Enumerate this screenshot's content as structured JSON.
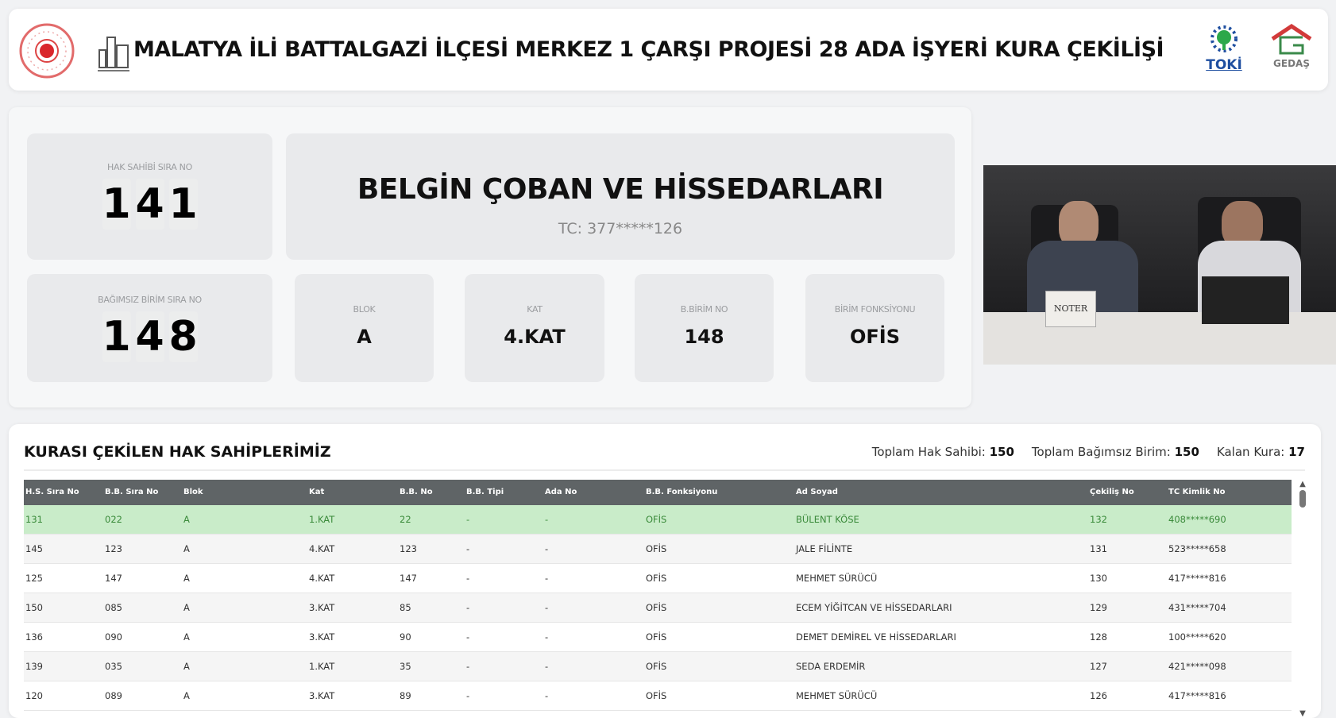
{
  "header": {
    "title": "MALATYA İLİ BATTALGAZİ İLÇESİ MERKEZ 1 ÇARŞI PROJESİ 28 ADA İŞYERİ KURA ÇEKİLİŞİ",
    "logos": [
      "toki",
      "gedas"
    ],
    "logo_text": {
      "toki": "TOKİ",
      "gedas": "GEDAŞ"
    }
  },
  "current": {
    "hak_sahibi_label": "HAK SAHİBİ SIRA NO",
    "hak_sahibi_digits": [
      "1",
      "4",
      "1"
    ],
    "name": "BELGİN ÇOBAN VE HİSSEDARLARI",
    "tc": "TC: 377*****126",
    "bb_label": "BAĞIMSIZ BİRİM SIRA NO",
    "bb_digits": [
      "1",
      "4",
      "8"
    ],
    "details": [
      {
        "label": "BLOK",
        "value": "A"
      },
      {
        "label": "KAT",
        "value": "4.KAT"
      },
      {
        "label": "B.BİRİM NO",
        "value": "148"
      },
      {
        "label": "BİRİM FONKSİYONU",
        "value": "OFİS"
      }
    ]
  },
  "video": {
    "sign": "NOTER"
  },
  "list": {
    "title": "KURASI ÇEKİLEN HAK SAHİPLERİMİZ",
    "totals": [
      {
        "label": "Toplam Hak Sahibi:",
        "value": "150"
      },
      {
        "label": "Toplam Bağımsız Birim:",
        "value": "150"
      },
      {
        "label": "Kalan Kura:",
        "value": "17"
      }
    ],
    "columns": [
      "H.S. Sıra No",
      "B.B. Sıra No",
      "Blok",
      "Kat",
      "B.B. No",
      "B.B. Tipi",
      "Ada No",
      "B.B. Fonksiyonu",
      "Ad Soyad",
      "Çekiliş No",
      "TC Kimlik No"
    ],
    "rows": [
      [
        "131",
        "022",
        "A",
        "1.KAT",
        "22",
        "-",
        "-",
        "OFİS",
        "BÜLENT KÖSE",
        "132",
        "408*****690"
      ],
      [
        "145",
        "123",
        "A",
        "4.KAT",
        "123",
        "-",
        "-",
        "OFİS",
        "JALE FİLİNTE",
        "131",
        "523*****658"
      ],
      [
        "125",
        "147",
        "A",
        "4.KAT",
        "147",
        "-",
        "-",
        "OFİS",
        "MEHMET SÜRÜCÜ",
        "130",
        "417*****816"
      ],
      [
        "150",
        "085",
        "A",
        "3.KAT",
        "85",
        "-",
        "-",
        "OFİS",
        "ECEM YİĞİTCAN VE HİSSEDARLARI",
        "129",
        "431*****704"
      ],
      [
        "136",
        "090",
        "A",
        "3.KAT",
        "90",
        "-",
        "-",
        "OFİS",
        "DEMET DEMİREL VE HİSSEDARLARI",
        "128",
        "100*****620"
      ],
      [
        "139",
        "035",
        "A",
        "1.KAT",
        "35",
        "-",
        "-",
        "OFİS",
        "SEDA ERDEMİR",
        "127",
        "421*****098"
      ],
      [
        "120",
        "089",
        "A",
        "3.KAT",
        "89",
        "-",
        "-",
        "OFİS",
        "MEHMET SÜRÜCÜ",
        "126",
        "417*****816"
      ]
    ],
    "highlight_color": "#c9ecc9"
  }
}
